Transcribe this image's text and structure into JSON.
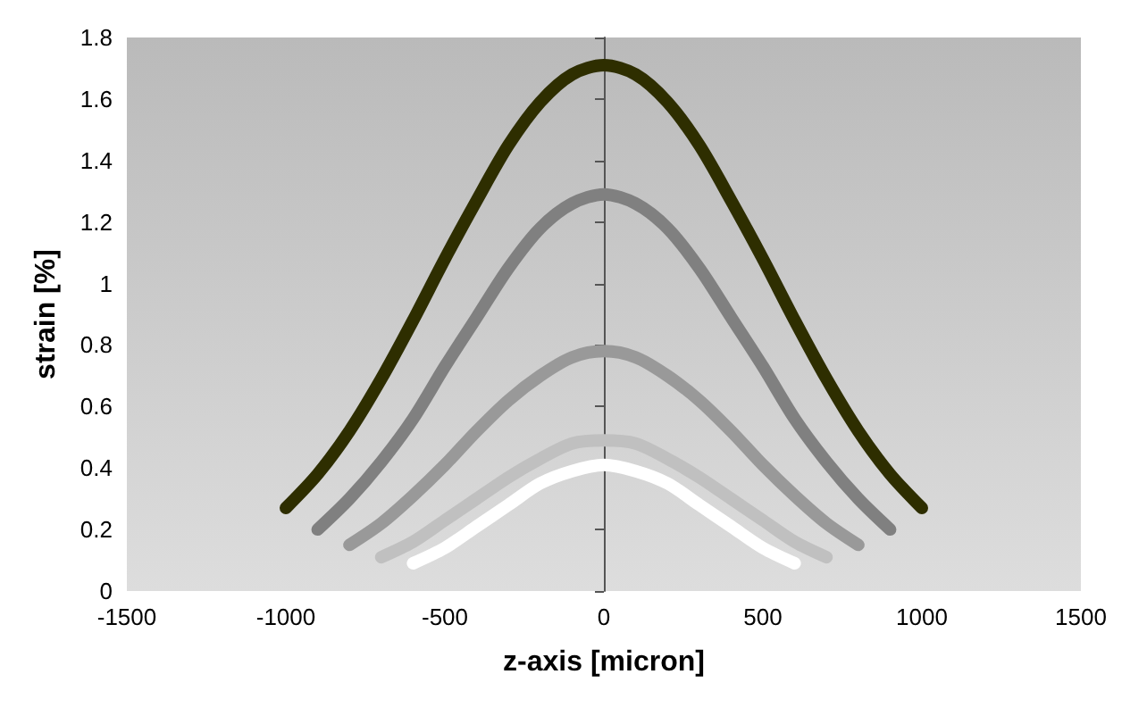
{
  "chart_data": {
    "type": "line",
    "xlabel": "z-axis [micron]",
    "ylabel": "strain [%]",
    "xlim": [
      -1500,
      1500
    ],
    "xticks": [
      -1500,
      -1000,
      -500,
      0,
      500,
      1000,
      1500
    ],
    "ylim": [
      0,
      1.8
    ],
    "yticks": [
      0,
      0.2,
      0.4,
      0.6,
      0.8,
      1,
      1.2,
      1.4,
      1.6,
      1.8
    ],
    "line_style": "solid",
    "series": [
      {
        "color": "#2e2e00",
        "x": [
          -1000,
          -900,
          -800,
          -700,
          -600,
          -500,
          -400,
          -300,
          -200,
          -100,
          0,
          100,
          200,
          300,
          400,
          500,
          600,
          700,
          800,
          900,
          1000
        ],
        "values": [
          0.27,
          0.38,
          0.52,
          0.69,
          0.88,
          1.08,
          1.27,
          1.45,
          1.59,
          1.68,
          1.71,
          1.68,
          1.59,
          1.45,
          1.27,
          1.08,
          0.88,
          0.69,
          0.52,
          0.38,
          0.27
        ]
      },
      {
        "color": "#808080",
        "x": [
          -900,
          -800,
          -700,
          -600,
          -500,
          -400,
          -300,
          -200,
          -100,
          0,
          100,
          200,
          300,
          400,
          500,
          600,
          700,
          800,
          900
        ],
        "values": [
          0.2,
          0.3,
          0.42,
          0.56,
          0.73,
          0.89,
          1.05,
          1.18,
          1.26,
          1.29,
          1.26,
          1.18,
          1.05,
          0.89,
          0.73,
          0.56,
          0.42,
          0.3,
          0.2
        ]
      },
      {
        "color": "#999999",
        "x": [
          -800,
          -700,
          -600,
          -500,
          -400,
          -300,
          -200,
          -100,
          0,
          100,
          200,
          300,
          400,
          500,
          600,
          700,
          800
        ],
        "values": [
          0.15,
          0.22,
          0.31,
          0.41,
          0.52,
          0.62,
          0.7,
          0.76,
          0.78,
          0.76,
          0.7,
          0.62,
          0.52,
          0.41,
          0.31,
          0.22,
          0.15
        ]
      },
      {
        "color": "#c0c0c0",
        "x": [
          -700,
          -600,
          -500,
          -400,
          -300,
          -200,
          -100,
          0,
          100,
          200,
          300,
          400,
          500,
          600,
          700
        ],
        "values": [
          0.11,
          0.16,
          0.23,
          0.3,
          0.37,
          0.43,
          0.48,
          0.49,
          0.48,
          0.43,
          0.37,
          0.3,
          0.23,
          0.16,
          0.11
        ]
      },
      {
        "color": "#ffffff",
        "x": [
          -600,
          -500,
          -400,
          -300,
          -200,
          -100,
          0,
          100,
          200,
          300,
          400,
          500,
          600
        ],
        "values": [
          0.09,
          0.14,
          0.21,
          0.28,
          0.35,
          0.39,
          0.41,
          0.39,
          0.35,
          0.28,
          0.21,
          0.14,
          0.09
        ]
      }
    ]
  }
}
